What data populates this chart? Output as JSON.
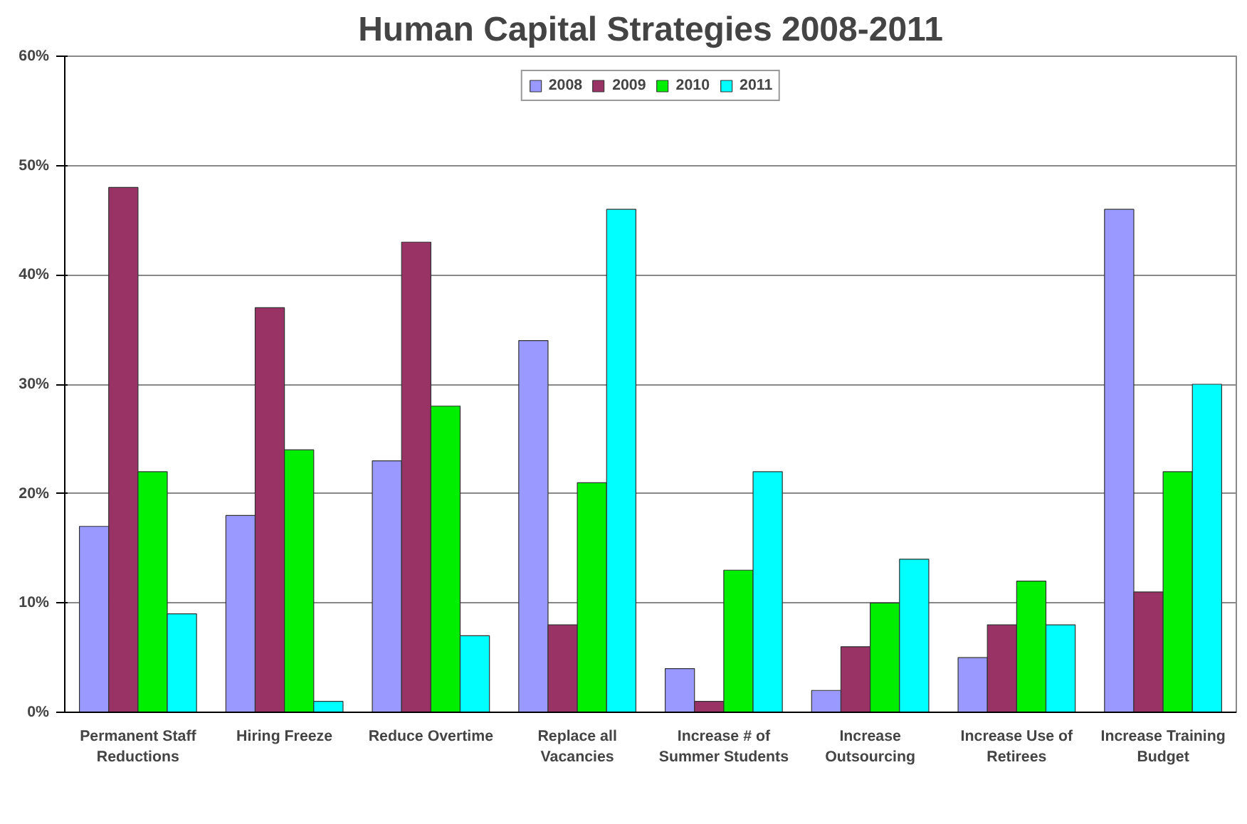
{
  "chart_data": {
    "type": "bar",
    "title": "Human Capital Strategies 2008-2011",
    "categories": [
      "Permanent Staff\nReductions",
      "Hiring Freeze",
      "Reduce Overtime",
      "Replace all\nVacancies",
      "Increase # of\nSummer Students",
      "Increase\nOutsourcing",
      "Increase Use of\nRetirees",
      "Increase Training\nBudget"
    ],
    "series": [
      {
        "name": "2008",
        "color": "#9999ff",
        "values": [
          17,
          18,
          23,
          34,
          4,
          2,
          5,
          46
        ]
      },
      {
        "name": "2009",
        "color": "#993366",
        "values": [
          48,
          37,
          43,
          8,
          1,
          6,
          8,
          11
        ]
      },
      {
        "name": "2010",
        "color": "#00ee00",
        "values": [
          22,
          24,
          28,
          21,
          13,
          10,
          12,
          22
        ]
      },
      {
        "name": "2011",
        "color": "#00ffff",
        "values": [
          9,
          1,
          7,
          46,
          22,
          14,
          8,
          30
        ]
      }
    ],
    "ylim": [
      0,
      60
    ],
    "yticks": [
      {
        "value": 0,
        "label": "0%"
      },
      {
        "value": 10,
        "label": "10%"
      },
      {
        "value": 20,
        "label": "20%"
      },
      {
        "value": 30,
        "label": "30%"
      },
      {
        "value": 40,
        "label": "40%"
      },
      {
        "value": 50,
        "label": "50%"
      },
      {
        "value": 60,
        "label": "60%"
      }
    ],
    "grid": "y",
    "legend": "top"
  }
}
